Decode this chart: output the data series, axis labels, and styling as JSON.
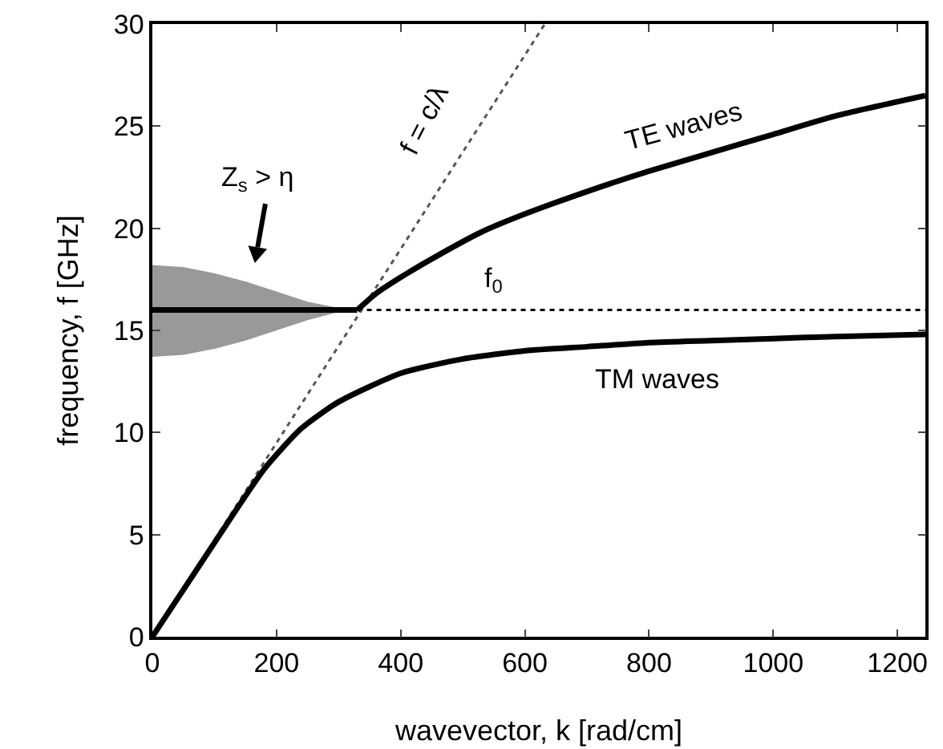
{
  "chart_data": {
    "type": "line",
    "xlabel": "wavevector, k [rad/cm]",
    "ylabel": "frequency, f [GHz]",
    "xlim": [
      0,
      1245
    ],
    "ylim": [
      0,
      30
    ],
    "xticks": [
      0,
      200,
      400,
      600,
      800,
      1000,
      1200
    ],
    "yticks": [
      0,
      5,
      10,
      15,
      20,
      25,
      30
    ],
    "series": [
      {
        "color": "#000000",
        "line_style": "solid",
        "x": [
          0,
          50,
          100,
          150,
          200,
          250,
          300,
          330
        ],
        "values": [
          16,
          16,
          16,
          16,
          16,
          16,
          16,
          16
        ],
        "lower": [
          13.7,
          13.8,
          14.1,
          14.5,
          15.0,
          15.5,
          15.9,
          16
        ],
        "upper": [
          18.2,
          18.1,
          17.8,
          17.4,
          16.9,
          16.4,
          16.1,
          16
        ]
      },
      {
        "color": "#000000",
        "line_style": "dotted",
        "x": [
          330,
          1245
        ],
        "values": [
          16,
          16
        ]
      },
      {
        "color": "#555555",
        "line_style": "dotted",
        "x": [
          0,
          632
        ],
        "values": [
          0,
          30
        ]
      },
      {
        "color": "#000000",
        "line_style": "solid",
        "x": [
          0,
          100,
          180,
          240,
          300,
          400,
          500,
          600,
          700,
          800,
          900,
          1000,
          1100,
          1245
        ],
        "values": [
          0,
          4.6,
          8.2,
          10.2,
          11.5,
          12.9,
          13.6,
          14.0,
          14.2,
          14.4,
          14.5,
          14.6,
          14.7,
          14.8
        ]
      },
      {
        "color": "#000000",
        "line_style": "solid",
        "x": [
          330,
          360,
          400,
          450,
          529,
          600,
          700,
          800,
          900,
          1000,
          1100,
          1245
        ],
        "values": [
          16,
          16.8,
          17.6,
          18.5,
          19.8,
          20.7,
          21.8,
          22.8,
          23.7,
          24.6,
          25.5,
          26.5
        ]
      }
    ],
    "annotations": [
      "Z$_{s}$ > η",
      "f = c/λ",
      "TE waves",
      "f$_{0}$",
      "TM waves"
    ]
  }
}
